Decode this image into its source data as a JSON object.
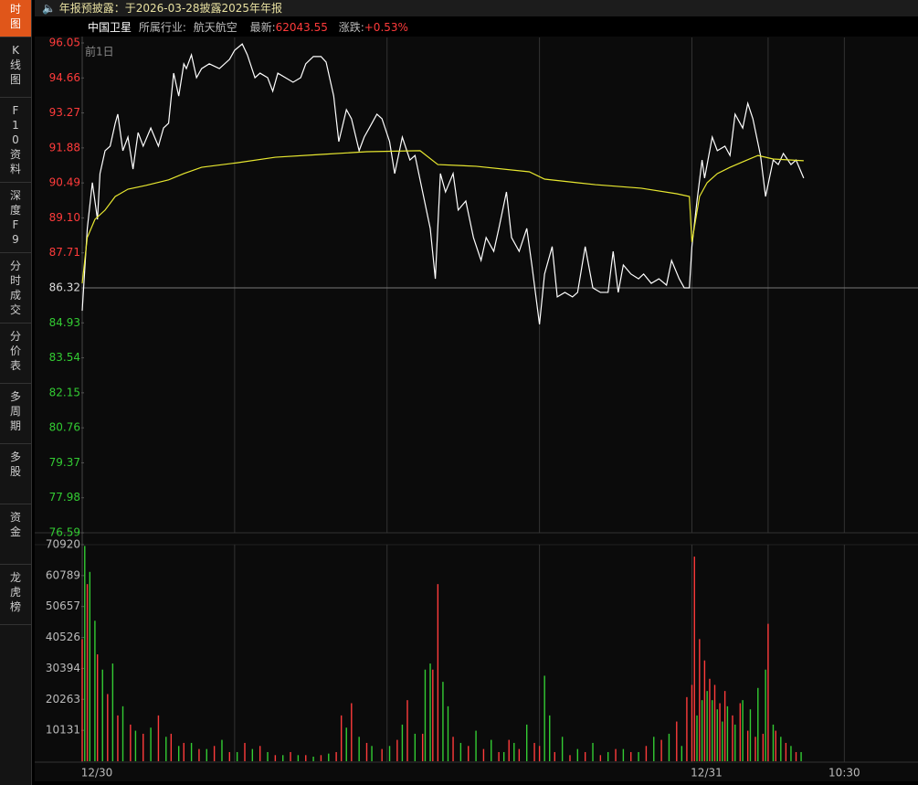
{
  "notice": "年报预披露：于2026-03-28披露2025年年报",
  "sidebar": [
    "时图",
    "K线图",
    "F10资料",
    "深度F9",
    "分时成交",
    "分价表",
    "多周期",
    "多股",
    "资金",
    "龙虎榜"
  ],
  "info": {
    "name": "中国卫星",
    "industry_label": "所属行业:",
    "industry": "航天航空",
    "latest_label": "最新:",
    "latest": 62043.55,
    "change_label": "涨跌:",
    "change": "+0.53%"
  },
  "chart_data": [
    {
      "type": "line",
      "annotation": "前1日",
      "xlim": [
        0,
        329
      ],
      "xticks": [
        {
          "value": 0,
          "label": "12/30"
        },
        {
          "value": 240,
          "label": "12/31"
        },
        {
          "value": 300,
          "label": "10:30"
        }
      ],
      "xgrid": [
        60,
        120,
        180,
        240,
        270,
        300
      ],
      "ylim": [
        76.59,
        96.05
      ],
      "yticks": [
        96.05,
        94.66,
        93.27,
        91.88,
        90.49,
        {
          "value": 89.1,
          "label": "89.10"
        },
        87.71,
        86.32,
        84.93,
        83.54,
        82.15,
        80.76,
        79.37,
        77.98,
        76.59
      ],
      "prev_close": 86.32,
      "up_color": "#ff3b3b",
      "down_color": "#33cc33",
      "flat_color": "#dddddd",
      "series": [
        {
          "color": "#ffffff",
          "x": [
            0,
            2,
            4,
            6,
            7,
            9,
            11,
            13,
            14,
            16,
            18,
            20,
            22,
            24,
            27,
            30,
            32,
            34,
            36,
            38,
            40,
            41,
            43,
            45,
            47,
            50,
            54,
            58,
            60,
            63,
            65,
            68,
            70,
            73,
            75,
            77,
            80,
            83,
            86,
            88,
            91,
            94,
            96,
            99,
            101,
            104,
            106,
            109,
            111,
            113,
            116,
            118,
            121,
            123,
            126,
            129,
            131,
            134,
            137,
            139,
            141,
            143,
            146,
            148,
            151,
            154,
            157,
            159,
            162,
            164,
            167,
            169,
            172,
            175,
            177,
            180,
            182,
            185,
            187,
            190,
            193,
            195,
            198,
            201,
            204,
            207,
            209,
            211,
            213,
            216,
            219,
            221,
            224,
            227,
            230,
            232,
            235,
            237,
            239,
            240,
            242,
            244,
            245,
            248,
            250,
            253,
            255,
            257,
            260,
            262,
            264,
            267,
            269,
            272,
            274,
            276,
            279,
            281,
            284
          ],
          "values": [
            85.41,
            88.68,
            90.5,
            89.04,
            90.86,
            91.77,
            91.95,
            92.86,
            93.22,
            91.77,
            92.31,
            91.04,
            92.49,
            91.95,
            92.67,
            91.95,
            92.67,
            92.86,
            94.85,
            93.94,
            95.22,
            95.03,
            95.58,
            94.67,
            95.03,
            95.22,
            95.03,
            95.4,
            95.76,
            96.01,
            95.58,
            94.67,
            94.85,
            94.67,
            94.13,
            94.85,
            94.67,
            94.49,
            94.67,
            95.22,
            95.51,
            95.51,
            95.29,
            93.94,
            92.13,
            93.4,
            93.04,
            91.77,
            92.31,
            92.67,
            93.22,
            93.04,
            92.13,
            90.86,
            92.31,
            91.4,
            91.58,
            90.13,
            88.68,
            86.68,
            90.86,
            90.13,
            90.86,
            89.41,
            89.77,
            88.32,
            87.41,
            88.32,
            87.77,
            88.68,
            90.13,
            88.32,
            87.77,
            88.68,
            87.23,
            84.87,
            86.87,
            87.96,
            85.96,
            86.14,
            85.96,
            86.14,
            87.96,
            86.32,
            86.14,
            86.14,
            87.77,
            86.14,
            87.23,
            86.87,
            86.68,
            86.87,
            86.5,
            86.68,
            86.43,
            87.41,
            86.68,
            86.32,
            86.32,
            87.96,
            89.77,
            91.4,
            90.68,
            92.31,
            91.77,
            91.95,
            91.58,
            93.22,
            92.67,
            93.65,
            93.04,
            91.58,
            89.95,
            91.4,
            91.22,
            91.66,
            91.22,
            91.4,
            90.68
          ]
        },
        {
          "color": "#e8e830",
          "x": [
            0,
            2,
            5,
            9,
            13,
            18,
            25,
            34,
            40,
            47,
            61,
            76,
            94,
            112,
            133,
            140,
            155,
            176,
            182,
            202,
            220,
            234,
            239,
            240,
            243,
            246,
            250,
            255,
            261,
            266,
            272,
            284
          ],
          "values": [
            86.5,
            88.32,
            89.04,
            89.41,
            89.95,
            90.24,
            90.39,
            90.61,
            90.86,
            91.11,
            91.29,
            91.51,
            91.62,
            91.73,
            91.77,
            91.22,
            91.15,
            90.93,
            90.64,
            90.42,
            90.28,
            90.06,
            89.95,
            88.14,
            89.95,
            90.5,
            90.86,
            91.11,
            91.37,
            91.58,
            91.44,
            91.37
          ]
        }
      ]
    },
    {
      "type": "bar",
      "xlim": [
        0,
        329
      ],
      "ylim": [
        0,
        70920
      ],
      "yticks": [
        70920,
        60789,
        50657,
        40526,
        30394,
        20263,
        10131
      ],
      "series": [
        {
          "color": "#ff3b3b",
          "x": [
            0,
            2,
            6,
            10,
            14,
            19,
            24,
            30,
            35,
            40,
            46,
            52,
            58,
            64,
            70,
            76,
            82,
            88,
            94,
            100,
            102,
            106,
            112,
            118,
            124,
            128,
            134,
            138,
            140,
            146,
            152,
            158,
            164,
            168,
            172,
            178,
            180,
            186,
            192,
            198,
            204,
            210,
            216,
            222,
            228,
            234,
            238,
            240,
            241,
            243,
            245,
            247,
            249,
            251,
            253,
            256,
            259,
            262,
            265,
            268,
            270,
            273,
            277,
            281
          ],
          "values": [
            40000,
            58000,
            35000,
            22000,
            15000,
            12000,
            9000,
            15000,
            9000,
            6000,
            4000,
            5000,
            3000,
            6000,
            5000,
            2000,
            3000,
            2000,
            2000,
            3000,
            15000,
            19000,
            6000,
            4000,
            7000,
            20000,
            9000,
            30000,
            58000,
            8000,
            5000,
            4000,
            3000,
            7000,
            4000,
            6000,
            5000,
            3000,
            2000,
            3000,
            2000,
            4000,
            3000,
            5000,
            7000,
            13000,
            21000,
            25000,
            67000,
            40000,
            33000,
            27000,
            25000,
            19000,
            23000,
            15000,
            19000,
            10000,
            8000,
            9000,
            45000,
            10000,
            6000,
            3000
          ]
        },
        {
          "color": "#33cc33",
          "x": [
            1,
            3,
            5,
            8,
            12,
            16,
            21,
            27,
            33,
            38,
            43,
            49,
            55,
            61,
            67,
            73,
            79,
            85,
            91,
            97,
            104,
            109,
            114,
            121,
            126,
            131,
            135,
            137,
            142,
            144,
            149,
            155,
            161,
            166,
            170,
            175,
            182,
            184,
            189,
            195,
            201,
            207,
            213,
            219,
            225,
            231,
            236,
            242,
            244,
            246,
            248,
            250,
            252,
            254,
            257,
            260,
            263,
            266,
            269,
            272,
            275,
            279,
            283
          ],
          "values": [
            70500,
            62000,
            46000,
            30000,
            32000,
            18000,
            10000,
            11000,
            8000,
            5000,
            6000,
            4000,
            7000,
            3000,
            4000,
            3000,
            2000,
            2000,
            1500,
            2500,
            11000,
            8000,
            5000,
            5000,
            12000,
            9000,
            30000,
            32000,
            26000,
            18000,
            6000,
            10000,
            7000,
            3000,
            6000,
            12000,
            28000,
            15000,
            8000,
            4000,
            6000,
            3000,
            4000,
            3000,
            8000,
            9000,
            5000,
            15000,
            20000,
            23000,
            20000,
            17000,
            13000,
            18000,
            12000,
            20000,
            17000,
            24000,
            30000,
            12000,
            8000,
            5000,
            3000
          ]
        }
      ]
    }
  ]
}
